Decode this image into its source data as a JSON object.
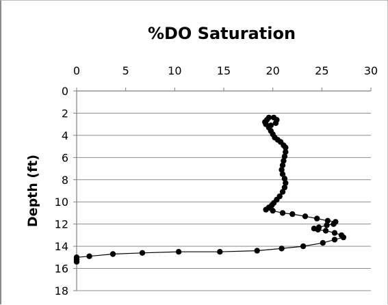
{
  "chart_data": {
    "type": "scatter",
    "title": "%DO Saturation",
    "xlabel": "",
    "ylabel": "Depth (ft)",
    "xlim": [
      0,
      30
    ],
    "ylim": [
      0,
      18
    ],
    "y_inverted": true,
    "x_axis_position": "top",
    "x_ticks": [
      "0",
      "5",
      "10",
      "15",
      "20",
      "25",
      "30"
    ],
    "y_ticks": [
      "0",
      "2",
      "4",
      "6",
      "8",
      "10",
      "12",
      "14",
      "16",
      "18"
    ],
    "grid": "horizontal",
    "legend": "none",
    "line_color": "#000000",
    "marker_color": "#000000",
    "series": [
      {
        "points": [
          [
            19.4,
            2.6
          ],
          [
            19.6,
            2.4
          ],
          [
            20.1,
            2.4
          ],
          [
            20.4,
            2.6
          ],
          [
            20.3,
            2.9
          ],
          [
            19.8,
            3.1
          ],
          [
            19.3,
            3.0
          ],
          [
            19.2,
            2.8
          ],
          [
            19.6,
            3.3
          ],
          [
            19.8,
            3.6
          ],
          [
            20.0,
            3.9
          ],
          [
            20.2,
            4.2
          ],
          [
            20.5,
            4.4
          ],
          [
            20.8,
            4.6
          ],
          [
            21.1,
            4.9
          ],
          [
            21.3,
            5.1
          ],
          [
            21.3,
            5.5
          ],
          [
            21.2,
            5.9
          ],
          [
            21.1,
            6.3
          ],
          [
            21.0,
            6.7
          ],
          [
            20.9,
            7.1
          ],
          [
            21.0,
            7.5
          ],
          [
            21.2,
            7.9
          ],
          [
            21.3,
            8.3
          ],
          [
            21.2,
            8.7
          ],
          [
            21.0,
            9.1
          ],
          [
            20.7,
            9.5
          ],
          [
            20.4,
            9.8
          ],
          [
            20.1,
            10.1
          ],
          [
            19.9,
            10.3
          ],
          [
            19.6,
            10.5
          ],
          [
            19.3,
            10.7
          ],
          [
            20.0,
            10.8
          ],
          [
            21.0,
            11.0
          ],
          [
            22.0,
            11.1
          ],
          [
            23.3,
            11.3
          ],
          [
            24.5,
            11.5
          ],
          [
            25.6,
            11.7
          ],
          [
            26.4,
            11.8
          ],
          [
            26.2,
            12.0
          ],
          [
            25.5,
            12.1
          ],
          [
            24.7,
            12.3
          ],
          [
            24.2,
            12.4
          ],
          [
            24.6,
            12.5
          ],
          [
            25.4,
            12.6
          ],
          [
            26.3,
            12.8
          ],
          [
            27.0,
            13.0
          ],
          [
            27.2,
            13.2
          ],
          [
            26.3,
            13.4
          ],
          [
            25.1,
            13.7
          ],
          [
            23.1,
            14.0
          ],
          [
            20.9,
            14.2
          ],
          [
            18.4,
            14.4
          ],
          [
            14.6,
            14.5
          ],
          [
            10.4,
            14.5
          ],
          [
            6.7,
            14.6
          ],
          [
            3.7,
            14.7
          ],
          [
            1.3,
            14.9
          ],
          [
            0.0,
            15.0
          ],
          [
            0.0,
            15.2
          ],
          [
            0.0,
            15.4
          ]
        ]
      }
    ]
  }
}
